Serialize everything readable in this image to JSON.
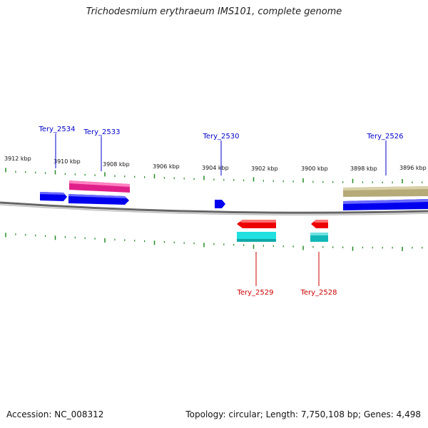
{
  "title": "Trichodesmium erythraeum IMS101, complete genome",
  "footer": {
    "accession": "Accession: NC_008312",
    "summary": "Topology: circular; Length: 7,750,108 bp; Genes: 4,498"
  },
  "colors": {
    "blue_gene": "#0000ee",
    "magenta_gene": "#e0208a",
    "olive_gene": "#b5aa78",
    "red_gene": "#ee0000",
    "cyan_gene": "#20e0e0",
    "teal_gene": "#10b8b8",
    "tick": "#228822",
    "backbone": "#888888",
    "forward_label": "#0000cc",
    "reverse_label": "#cc0000"
  },
  "ticks": {
    "labels": [
      "3912 kbp",
      "3910 kbp",
      "3908 kbp",
      "3906 kbp",
      "3904 kbp",
      "3902 kbp",
      "3900 kbp",
      "3898 kbp",
      "3896 kbp"
    ]
  },
  "genes": {
    "forward_labels": [
      "Tery_2534",
      "Tery_2533",
      "Tery_2530",
      "Tery_2526"
    ],
    "reverse_labels": [
      "Tery_2529",
      "Tery_2528"
    ]
  }
}
